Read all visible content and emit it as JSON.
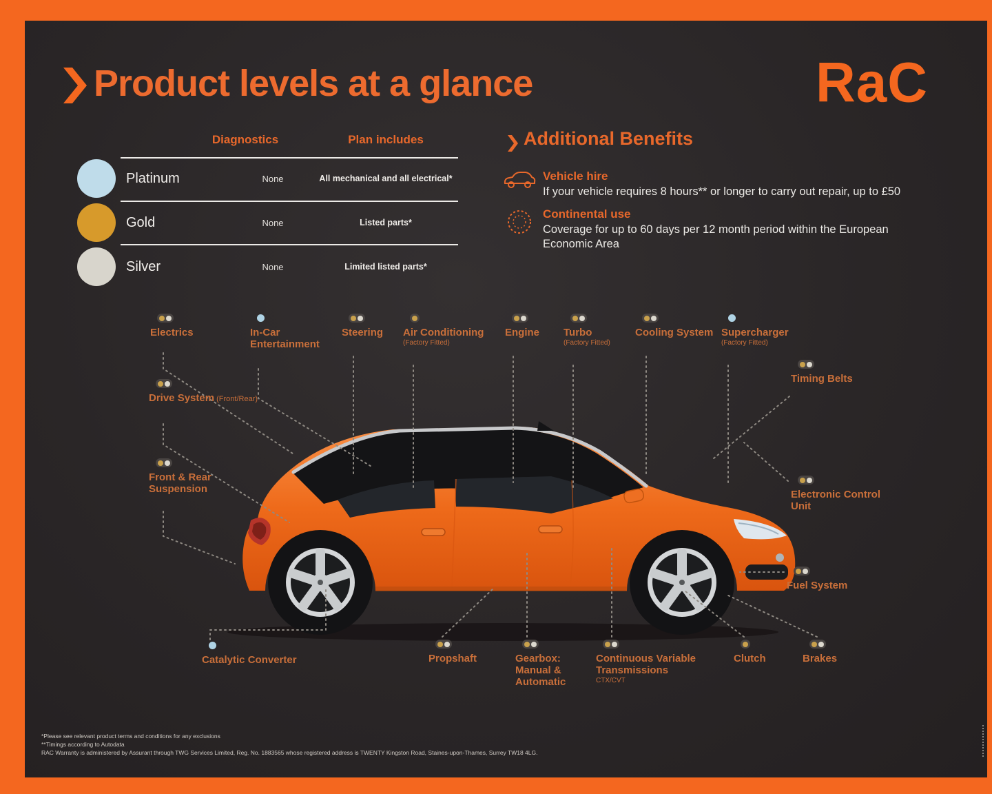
{
  "header": {
    "title": "Product levels at a glance"
  },
  "logo": {
    "text": "RaC"
  },
  "colors": {
    "accent": "#F4671F",
    "label_orange": "#C96F3A",
    "gold": "#C9A14C",
    "silver": "#DCD8CE",
    "platinum": "#AFD3E5"
  },
  "plans": {
    "columns": [
      "Diagnostics",
      "Plan includes"
    ],
    "rows": [
      {
        "name": "Platinum",
        "color": "#BFDCEA",
        "diagnostics": "None",
        "plan_includes": "All mechanical and all electrical*"
      },
      {
        "name": "Gold",
        "color": "#D79A2B",
        "diagnostics": "None",
        "plan_includes": "Listed parts*"
      },
      {
        "name": "Silver",
        "color": "#D8D5CC",
        "diagnostics": "None",
        "plan_includes": "Limited listed parts*"
      }
    ]
  },
  "benefits": {
    "title": "Additional Benefits",
    "items": [
      {
        "icon": "car-icon",
        "title": "Vehicle hire",
        "text": "If your vehicle requires 8 hours** or longer to carry out repair, up to £50"
      },
      {
        "icon": "eu-stars-icon",
        "title": "Continental use",
        "text": "Coverage for up to 60 days per 12 month period within the European Economic Area"
      }
    ]
  },
  "parts": [
    {
      "id": "electrics",
      "label": "Electrics",
      "coverage": "gold_silver"
    },
    {
      "id": "in-car-entertainment",
      "label": "In-Car Entertainment",
      "coverage": "platinum"
    },
    {
      "id": "steering",
      "label": "Steering",
      "coverage": "gold_silver"
    },
    {
      "id": "air-conditioning",
      "label": "Air Conditioning",
      "sub": "(Factory Fitted)",
      "coverage": "gold"
    },
    {
      "id": "engine",
      "label": "Engine",
      "coverage": "gold_silver"
    },
    {
      "id": "turbo",
      "label": "Turbo",
      "sub": "(Factory Fitted)",
      "coverage": "gold_silver"
    },
    {
      "id": "cooling-system",
      "label": "Cooling System",
      "coverage": "gold_silver"
    },
    {
      "id": "supercharger",
      "label": "Supercharger",
      "sub": "(Factory Fitted)",
      "coverage": "platinum"
    },
    {
      "id": "timing-belts",
      "label": "Timing Belts",
      "coverage": "gold_silver"
    },
    {
      "id": "drive-system",
      "label": "Drive System",
      "sub_inline": "(Front/Rear)",
      "coverage": "gold_silver"
    },
    {
      "id": "front-rear-suspension",
      "label": "Front & Rear Suspension",
      "coverage": "gold_silver"
    },
    {
      "id": "electronic-control-unit",
      "label": "Electronic Control Unit",
      "coverage": "gold_silver"
    },
    {
      "id": "fuel-system",
      "label": "Fuel System",
      "coverage": "gold_silver"
    },
    {
      "id": "catalytic-converter",
      "label": "Catalytic Converter",
      "coverage": "platinum"
    },
    {
      "id": "propshaft",
      "label": "Propshaft",
      "coverage": "gold_silver"
    },
    {
      "id": "gearbox",
      "label": "Gearbox: Manual & Automatic",
      "coverage": "gold_silver"
    },
    {
      "id": "cvt",
      "label": "Continuous Variable Transmissions",
      "sub": "CTX/CVT",
      "coverage": "gold_silver"
    },
    {
      "id": "clutch",
      "label": "Clutch",
      "coverage": "gold"
    },
    {
      "id": "brakes",
      "label": "Brakes",
      "coverage": "gold_silver"
    }
  ],
  "footnotes": {
    "lines": [
      "*Please see relevant product terms and conditions for any exclusions",
      "**Timings according to Autodata",
      "RAC Warranty is administered by Assurant through TWG Services Limited, Reg. No. 1883565 whose registered address is TWENTY Kingston Road, Staines-upon-Thames, Surrey TW18 4LG."
    ]
  }
}
